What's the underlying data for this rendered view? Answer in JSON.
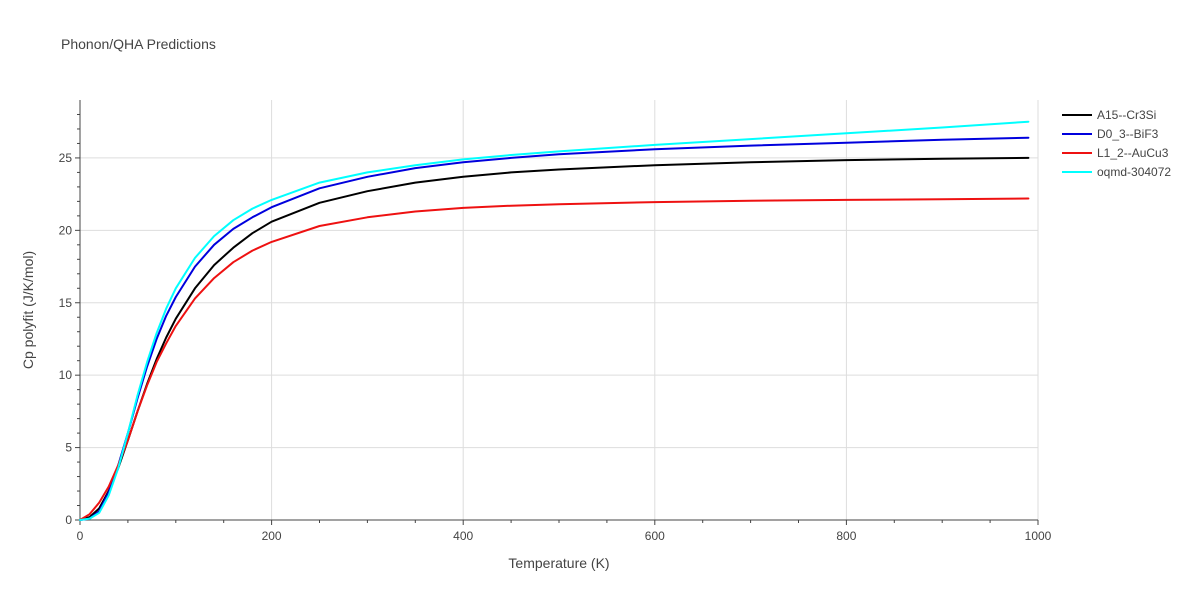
{
  "chart_data": {
    "type": "line",
    "title": "Phonon/QHA Predictions",
    "xlabel": "Temperature (K)",
    "ylabel": "Cp polyfit (J/K/mol)",
    "xlim": [
      0,
      1000
    ],
    "ylim": [
      0,
      29
    ],
    "x_ticks": [
      0,
      200,
      400,
      600,
      800,
      1000
    ],
    "y_ticks": [
      0,
      5,
      10,
      15,
      20,
      25
    ],
    "grid": true,
    "legend_position": "top-right",
    "series": [
      {
        "name": "A15--Cr3Si",
        "color": "#000000",
        "x": [
          0,
          10,
          20,
          30,
          40,
          50,
          60,
          70,
          80,
          90,
          100,
          120,
          140,
          160,
          180,
          200,
          250,
          300,
          350,
          400,
          450,
          500,
          600,
          700,
          800,
          900,
          990
        ],
        "y": [
          0,
          0.2,
          0.8,
          2.0,
          3.6,
          5.5,
          7.5,
          9.4,
          11.1,
          12.6,
          13.9,
          16.0,
          17.6,
          18.8,
          19.8,
          20.6,
          21.9,
          22.7,
          23.3,
          23.7,
          24.0,
          24.2,
          24.5,
          24.7,
          24.85,
          24.95,
          25.0
        ]
      },
      {
        "name": "D0_3--BiF3",
        "color": "#0000dd",
        "x": [
          0,
          10,
          20,
          30,
          40,
          50,
          60,
          70,
          80,
          90,
          100,
          120,
          140,
          160,
          180,
          200,
          250,
          300,
          350,
          400,
          450,
          500,
          600,
          700,
          800,
          900,
          990
        ],
        "y": [
          0,
          0.1,
          0.6,
          1.9,
          3.8,
          6.0,
          8.4,
          10.6,
          12.5,
          14.1,
          15.4,
          17.5,
          19.0,
          20.1,
          20.9,
          21.6,
          22.9,
          23.7,
          24.3,
          24.7,
          25.0,
          25.25,
          25.6,
          25.85,
          26.05,
          26.25,
          26.4
        ]
      },
      {
        "name": "L1_2--AuCu3",
        "color": "#ee1111",
        "x": [
          0,
          10,
          20,
          30,
          40,
          50,
          60,
          70,
          80,
          90,
          100,
          120,
          140,
          160,
          180,
          200,
          250,
          300,
          350,
          400,
          450,
          500,
          600,
          700,
          800,
          900,
          990
        ],
        "y": [
          0,
          0.4,
          1.2,
          2.3,
          3.8,
          5.5,
          7.5,
          9.3,
          10.9,
          12.2,
          13.4,
          15.3,
          16.7,
          17.8,
          18.6,
          19.2,
          20.3,
          20.9,
          21.3,
          21.55,
          21.7,
          21.8,
          21.95,
          22.05,
          22.1,
          22.15,
          22.2
        ]
      },
      {
        "name": "oqmd-304072",
        "color": "#00ffff",
        "x": [
          0,
          10,
          20,
          30,
          40,
          50,
          60,
          70,
          80,
          90,
          100,
          120,
          140,
          160,
          180,
          200,
          250,
          300,
          350,
          400,
          450,
          500,
          600,
          700,
          800,
          900,
          990
        ],
        "y": [
          0,
          0.1,
          0.5,
          1.7,
          3.6,
          6.0,
          8.6,
          10.9,
          12.9,
          14.6,
          16.0,
          18.1,
          19.6,
          20.7,
          21.5,
          22.1,
          23.3,
          24.0,
          24.5,
          24.9,
          25.2,
          25.45,
          25.9,
          26.3,
          26.7,
          27.1,
          27.5
        ]
      }
    ]
  }
}
